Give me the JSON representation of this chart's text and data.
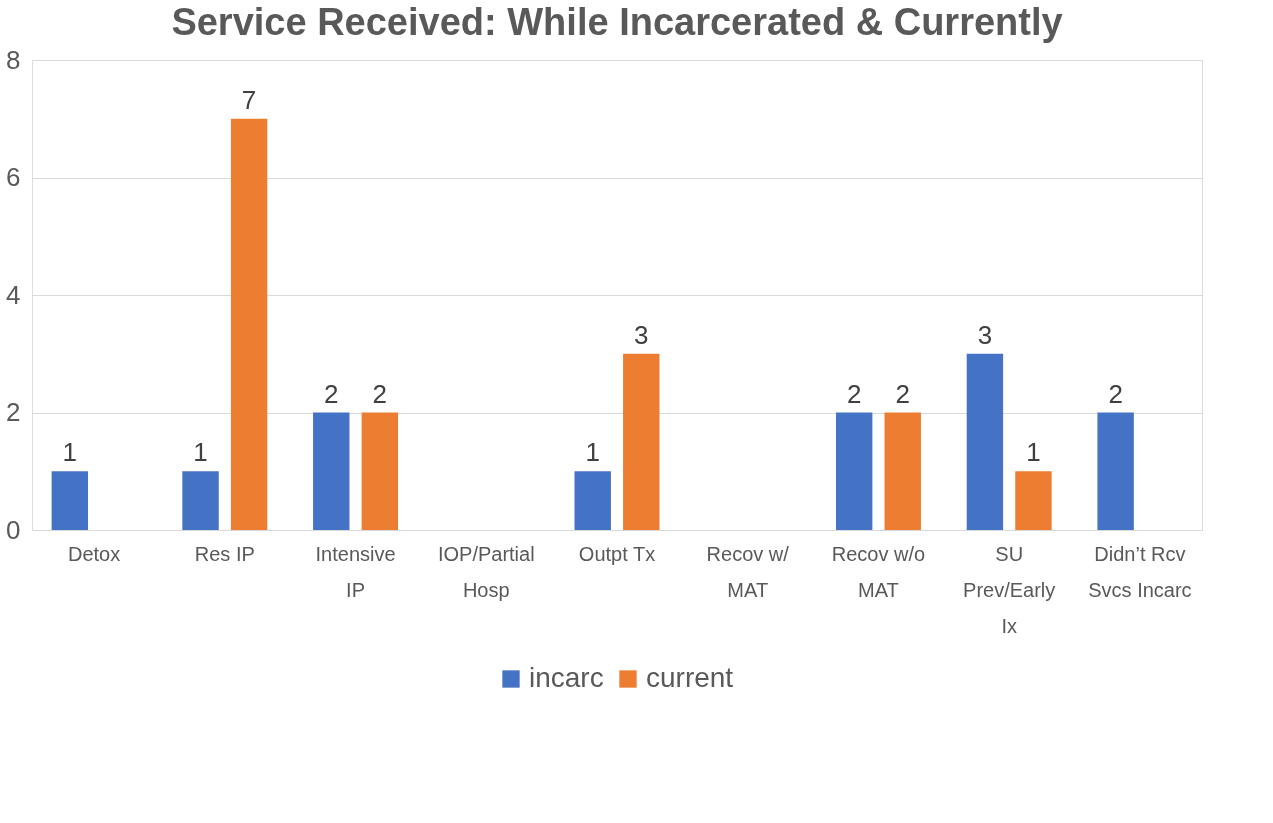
{
  "chart_data": {
    "type": "bar",
    "title": "Service Received: While Incarcerated & Currently",
    "categories": [
      "Detox",
      "Res IP",
      "Intensive\nIP",
      "IOP/Partial\nHosp",
      "Outpt Tx",
      "Recov w/\nMAT",
      "Recov w/o\nMAT",
      "SU\nPrev/Early\nIx",
      "Didn’t Rcv\nSvcs Incarc"
    ],
    "series": [
      {
        "name": "incarc",
        "color": "#4472c4",
        "values": [
          1,
          1,
          2,
          null,
          1,
          null,
          2,
          3,
          2
        ]
      },
      {
        "name": "current",
        "color": "#ed7d31",
        "values": [
          null,
          7,
          2,
          null,
          3,
          null,
          2,
          1,
          null
        ]
      }
    ],
    "ylim": [
      0,
      8
    ],
    "yticks": [
      0,
      2,
      4,
      6,
      8
    ],
    "grid": "y",
    "legend": "bottom",
    "data_labels": true
  }
}
